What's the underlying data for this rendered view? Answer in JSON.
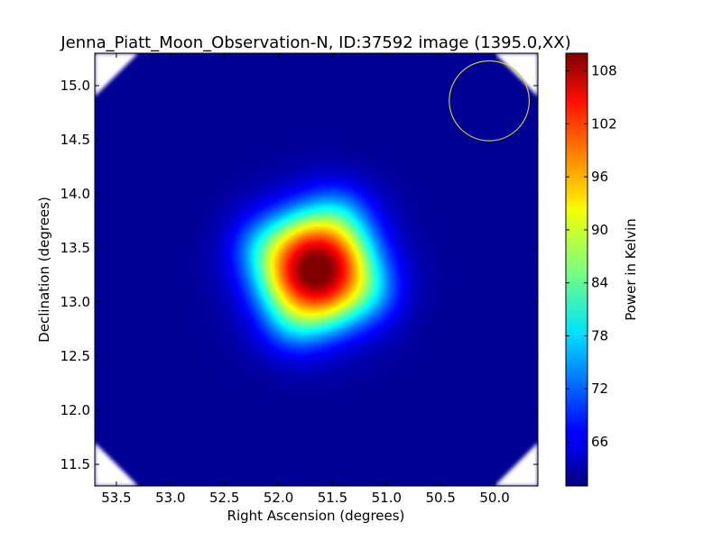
{
  "chart_data": {
    "type": "heatmap",
    "title": "Jenna_Piatt_Moon_Observation-N, ID:37592 image (1395.0,XX)",
    "xlabel": "Right Ascension (degrees)",
    "ylabel": "Declination (degrees)",
    "colorbar_label": "Power in Kelvin",
    "colormap": "jet",
    "x_axis_inverted": true,
    "xlim": [
      53.7,
      49.6
    ],
    "ylim": [
      11.3,
      15.3
    ],
    "x_ticks": [
      53.5,
      53.0,
      52.5,
      52.0,
      51.5,
      51.0,
      50.5,
      50.0
    ],
    "x_tick_labels": [
      "53.5",
      "53.0",
      "52.5",
      "52.0",
      "51.5",
      "51.0",
      "50.5",
      "50.0"
    ],
    "y_ticks": [
      11.5,
      12.0,
      12.5,
      13.0,
      13.5,
      14.0,
      14.5,
      15.0
    ],
    "y_tick_labels": [
      "11.5",
      "12.0",
      "12.5",
      "13.0",
      "13.5",
      "14.0",
      "14.5",
      "15.0"
    ],
    "colorbar_range": [
      61,
      110
    ],
    "colorbar_ticks": [
      66,
      72,
      78,
      84,
      90,
      96,
      102,
      108
    ],
    "colorbar_tick_labels": [
      "66",
      "72",
      "78",
      "84",
      "90",
      "96",
      "102",
      "108"
    ],
    "background_level": 62,
    "source": {
      "center_ra": 51.65,
      "center_dec": 13.3,
      "peak": 110,
      "half_width_deg": 0.55,
      "rotation_deg": 22
    },
    "beam_circle": {
      "center_ra": 50.05,
      "center_dec": 14.86,
      "radius_deg": 0.37,
      "color": "#c8c832"
    },
    "corner_mask_color": "#ffffff"
  }
}
